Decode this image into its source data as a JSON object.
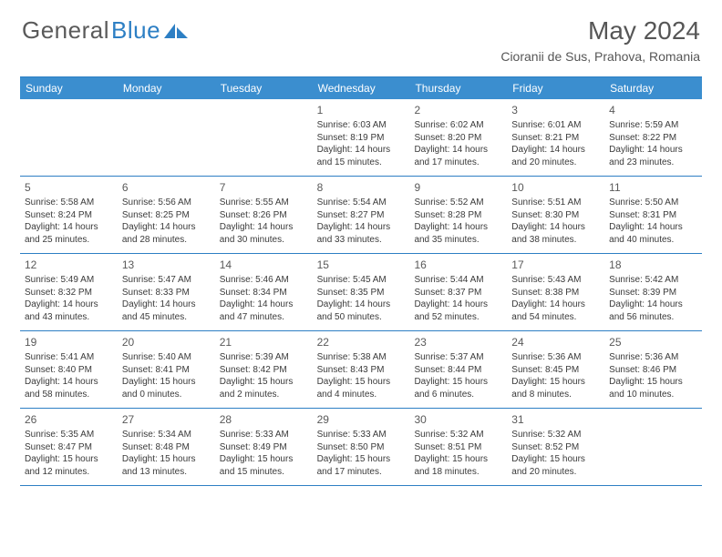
{
  "logo": {
    "text_gray": "General",
    "text_blue": "Blue"
  },
  "header": {
    "month": "May 2024",
    "location": "Cioranii de Sus, Prahova, Romania"
  },
  "colors": {
    "header_bg": "#3b8ecf",
    "border": "#2d7fc4",
    "text_gray": "#565656",
    "cell_text": "#3a3a3a",
    "white": "#ffffff"
  },
  "weekdays": [
    "Sunday",
    "Monday",
    "Tuesday",
    "Wednesday",
    "Thursday",
    "Friday",
    "Saturday"
  ],
  "weeks": [
    [
      null,
      null,
      null,
      {
        "n": "1",
        "sr": "6:03 AM",
        "ss": "8:19 PM",
        "dl": "14 hours and 15 minutes."
      },
      {
        "n": "2",
        "sr": "6:02 AM",
        "ss": "8:20 PM",
        "dl": "14 hours and 17 minutes."
      },
      {
        "n": "3",
        "sr": "6:01 AM",
        "ss": "8:21 PM",
        "dl": "14 hours and 20 minutes."
      },
      {
        "n": "4",
        "sr": "5:59 AM",
        "ss": "8:22 PM",
        "dl": "14 hours and 23 minutes."
      }
    ],
    [
      {
        "n": "5",
        "sr": "5:58 AM",
        "ss": "8:24 PM",
        "dl": "14 hours and 25 minutes."
      },
      {
        "n": "6",
        "sr": "5:56 AM",
        "ss": "8:25 PM",
        "dl": "14 hours and 28 minutes."
      },
      {
        "n": "7",
        "sr": "5:55 AM",
        "ss": "8:26 PM",
        "dl": "14 hours and 30 minutes."
      },
      {
        "n": "8",
        "sr": "5:54 AM",
        "ss": "8:27 PM",
        "dl": "14 hours and 33 minutes."
      },
      {
        "n": "9",
        "sr": "5:52 AM",
        "ss": "8:28 PM",
        "dl": "14 hours and 35 minutes."
      },
      {
        "n": "10",
        "sr": "5:51 AM",
        "ss": "8:30 PM",
        "dl": "14 hours and 38 minutes."
      },
      {
        "n": "11",
        "sr": "5:50 AM",
        "ss": "8:31 PM",
        "dl": "14 hours and 40 minutes."
      }
    ],
    [
      {
        "n": "12",
        "sr": "5:49 AM",
        "ss": "8:32 PM",
        "dl": "14 hours and 43 minutes."
      },
      {
        "n": "13",
        "sr": "5:47 AM",
        "ss": "8:33 PM",
        "dl": "14 hours and 45 minutes."
      },
      {
        "n": "14",
        "sr": "5:46 AM",
        "ss": "8:34 PM",
        "dl": "14 hours and 47 minutes."
      },
      {
        "n": "15",
        "sr": "5:45 AM",
        "ss": "8:35 PM",
        "dl": "14 hours and 50 minutes."
      },
      {
        "n": "16",
        "sr": "5:44 AM",
        "ss": "8:37 PM",
        "dl": "14 hours and 52 minutes."
      },
      {
        "n": "17",
        "sr": "5:43 AM",
        "ss": "8:38 PM",
        "dl": "14 hours and 54 minutes."
      },
      {
        "n": "18",
        "sr": "5:42 AM",
        "ss": "8:39 PM",
        "dl": "14 hours and 56 minutes."
      }
    ],
    [
      {
        "n": "19",
        "sr": "5:41 AM",
        "ss": "8:40 PM",
        "dl": "14 hours and 58 minutes."
      },
      {
        "n": "20",
        "sr": "5:40 AM",
        "ss": "8:41 PM",
        "dl": "15 hours and 0 minutes."
      },
      {
        "n": "21",
        "sr": "5:39 AM",
        "ss": "8:42 PM",
        "dl": "15 hours and 2 minutes."
      },
      {
        "n": "22",
        "sr": "5:38 AM",
        "ss": "8:43 PM",
        "dl": "15 hours and 4 minutes."
      },
      {
        "n": "23",
        "sr": "5:37 AM",
        "ss": "8:44 PM",
        "dl": "15 hours and 6 minutes."
      },
      {
        "n": "24",
        "sr": "5:36 AM",
        "ss": "8:45 PM",
        "dl": "15 hours and 8 minutes."
      },
      {
        "n": "25",
        "sr": "5:36 AM",
        "ss": "8:46 PM",
        "dl": "15 hours and 10 minutes."
      }
    ],
    [
      {
        "n": "26",
        "sr": "5:35 AM",
        "ss": "8:47 PM",
        "dl": "15 hours and 12 minutes."
      },
      {
        "n": "27",
        "sr": "5:34 AM",
        "ss": "8:48 PM",
        "dl": "15 hours and 13 minutes."
      },
      {
        "n": "28",
        "sr": "5:33 AM",
        "ss": "8:49 PM",
        "dl": "15 hours and 15 minutes."
      },
      {
        "n": "29",
        "sr": "5:33 AM",
        "ss": "8:50 PM",
        "dl": "15 hours and 17 minutes."
      },
      {
        "n": "30",
        "sr": "5:32 AM",
        "ss": "8:51 PM",
        "dl": "15 hours and 18 minutes."
      },
      {
        "n": "31",
        "sr": "5:32 AM",
        "ss": "8:52 PM",
        "dl": "15 hours and 20 minutes."
      },
      null
    ]
  ],
  "labels": {
    "sunrise": "Sunrise:",
    "sunset": "Sunset:",
    "daylight": "Daylight:"
  }
}
